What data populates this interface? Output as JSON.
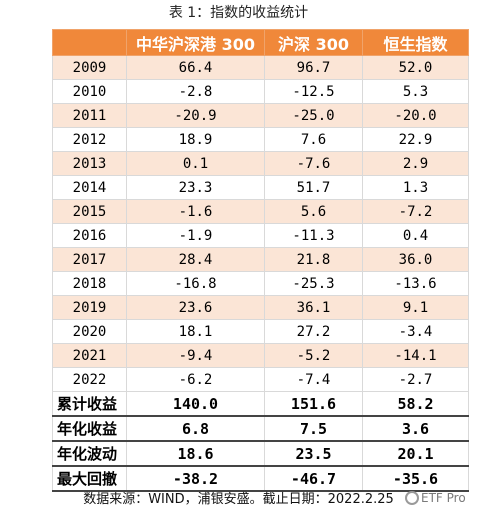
{
  "caption": "表 1：指数的收益统计",
  "headers": [
    "",
    "中华沪深港 300",
    "沪深 300",
    "恒生指数"
  ],
  "rows": [
    [
      "2009",
      "66.4",
      "96.7",
      "52.0"
    ],
    [
      "2010",
      "-2.8",
      "-12.5",
      "5.3"
    ],
    [
      "2011",
      "-20.9",
      "-25.0",
      "-20.0"
    ],
    [
      "2012",
      "18.9",
      "7.6",
      "22.9"
    ],
    [
      "2013",
      "0.1",
      "-7.6",
      "2.9"
    ],
    [
      "2014",
      "23.3",
      "51.7",
      "1.3"
    ],
    [
      "2015",
      "-1.6",
      "5.6",
      "-7.2"
    ],
    [
      "2016",
      "-1.9",
      "-11.3",
      "0.4"
    ],
    [
      "2017",
      "28.4",
      "21.8",
      "36.0"
    ],
    [
      "2018",
      "-16.8",
      "-25.3",
      "-13.6"
    ],
    [
      "2019",
      "23.6",
      "36.1",
      "9.1"
    ],
    [
      "2020",
      "18.1",
      "27.2",
      "-3.4"
    ],
    [
      "2021",
      "-9.4",
      "-5.2",
      "-14.1"
    ],
    [
      "2022",
      "-6.2",
      "-7.4",
      "-2.7"
    ]
  ],
  "summary_rows": [
    [
      "累计收益",
      "140.0",
      "151.6",
      "58.2"
    ],
    [
      "年化收益",
      "6.8",
      "7.5",
      "3.6"
    ],
    [
      "年化波动",
      "18.6",
      "23.5",
      "20.1"
    ],
    [
      "最大回撤",
      "-38.2",
      "-46.7",
      "-35.6"
    ]
  ],
  "footer": "数据来源：WIND，浦银安盛。截止日期：2022.2.25",
  "watermark": "ETF Pro"
}
